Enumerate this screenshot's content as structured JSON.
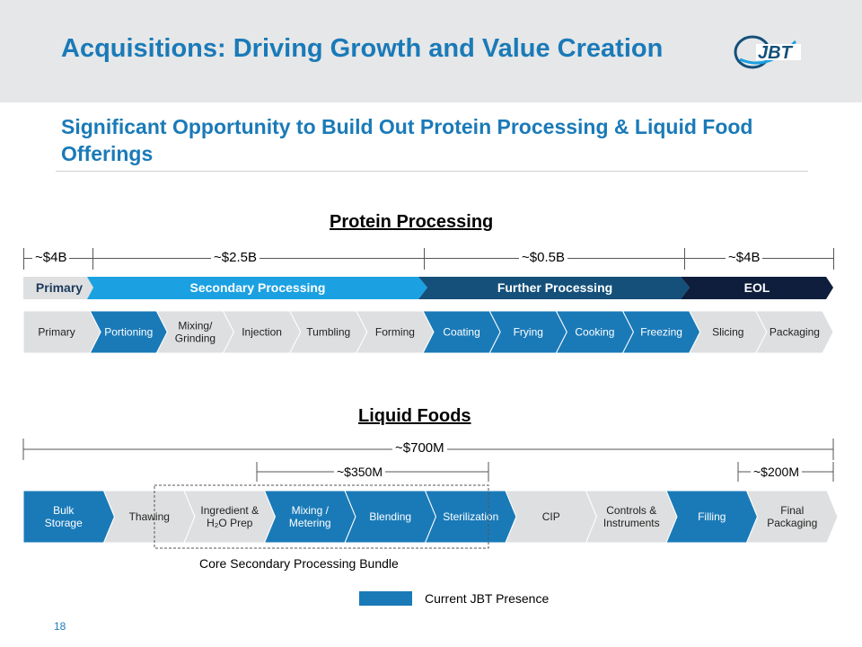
{
  "title": "Acquisitions: Driving Growth and Value Creation",
  "subtitle": "Significant Opportunity to Build Out Protein Processing & Liquid Food Offerings",
  "logo_text": "JBT",
  "colors": {
    "brand_blue": "#1a7ab8",
    "light_blue": "#1ba1e2",
    "dark_blue": "#14507a",
    "navy": "#0f1e3c",
    "gray_step": "#dedfe0"
  },
  "protein": {
    "heading": "Protein Processing",
    "amounts": [
      "~$4B",
      "~$2.5B",
      "~$0.5B",
      "~$4B"
    ],
    "categories": [
      "Primary",
      "Secondary Processing",
      "Further Processing",
      "EOL"
    ],
    "steps": [
      {
        "label": "Primary",
        "jbt": false
      },
      {
        "label": "Portioning",
        "jbt": true
      },
      {
        "label": "Mixing/\nGrinding",
        "jbt": false
      },
      {
        "label": "Injection",
        "jbt": false
      },
      {
        "label": "Tumbling",
        "jbt": false
      },
      {
        "label": "Forming",
        "jbt": false
      },
      {
        "label": "Coating",
        "jbt": true
      },
      {
        "label": "Frying",
        "jbt": true
      },
      {
        "label": "Cooking",
        "jbt": true
      },
      {
        "label": "Freezing",
        "jbt": true
      },
      {
        "label": "Slicing",
        "jbt": false
      },
      {
        "label": "Packaging",
        "jbt": false
      }
    ]
  },
  "liquid": {
    "heading": "Liquid Foods",
    "total": "~$700M",
    "sub_amount": "~$350M",
    "end_amount": "~$200M",
    "steps": [
      {
        "label": "Bulk\nStorage",
        "jbt": true
      },
      {
        "label": "Thawing",
        "jbt": false
      },
      {
        "label": "Ingredient  &\nH₂O Prep",
        "jbt": false
      },
      {
        "label": "Mixing /\nMetering",
        "jbt": true
      },
      {
        "label": "Blending",
        "jbt": true
      },
      {
        "label": "Sterilization",
        "jbt": true
      },
      {
        "label": "CIP",
        "jbt": false
      },
      {
        "label": "Controls &\nInstruments",
        "jbt": false
      },
      {
        "label": "Filling",
        "jbt": true
      },
      {
        "label": "Final\nPackaging",
        "jbt": false
      }
    ],
    "bundle_label": "Core Secondary Processing Bundle"
  },
  "legend": {
    "label": "Current  JBT Presence"
  },
  "page_number": "18"
}
